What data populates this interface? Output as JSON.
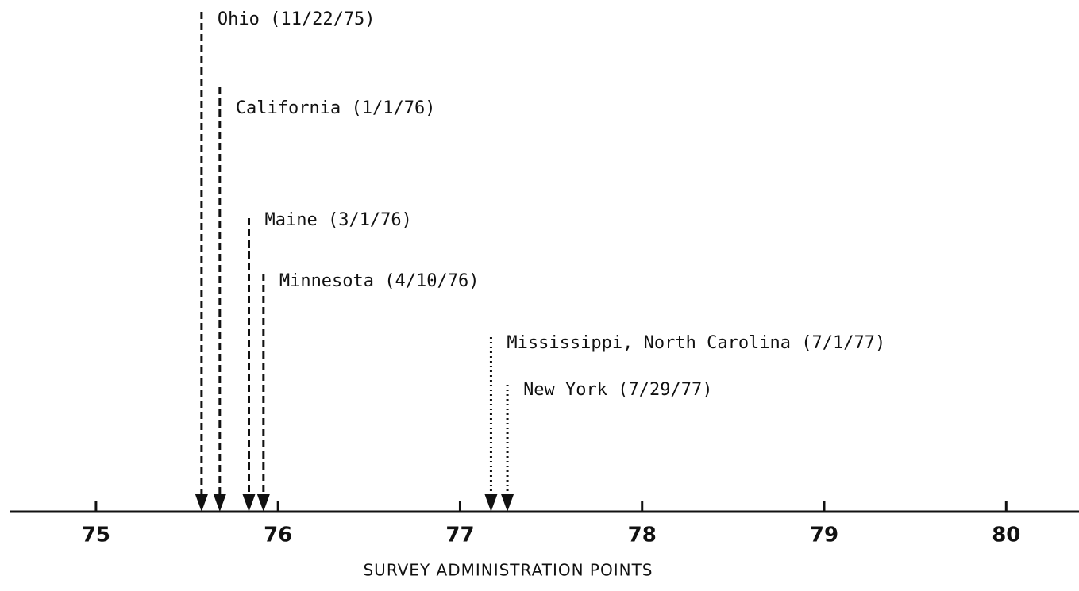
{
  "chart_data": {
    "type": "timeline",
    "xlabel": "SURVEY ADMINISTRATION POINTS",
    "xlim": [
      74.525,
      80.4
    ],
    "xticks": [
      75,
      76,
      77,
      78,
      79,
      80
    ],
    "color": "#111111",
    "events": [
      {
        "label": "Ohio (11/22/75)",
        "x": 75.58,
        "style": "dashed"
      },
      {
        "label": "California (1/1/76)",
        "x": 75.68,
        "style": "dashed"
      },
      {
        "label": "Maine (3/1/76)",
        "x": 75.84,
        "style": "dashed"
      },
      {
        "label": "Minnesota (4/10/76)",
        "x": 75.92,
        "style": "dashed"
      },
      {
        "label": "Mississippi, North Carolina (7/1/77)",
        "x": 77.17,
        "style": "dotted"
      },
      {
        "label": "New York (7/29/77)",
        "x": 77.26,
        "style": "dotted"
      }
    ]
  }
}
